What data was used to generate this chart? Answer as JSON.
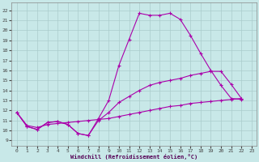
{
  "xlabel": "Windchill (Refroidissement éolien,°C)",
  "background_color": "#c8e8e8",
  "grid_color": "#aacccc",
  "line_color": "#aa00aa",
  "xlim": [
    -0.5,
    23.5
  ],
  "ylim": [
    8.5,
    22.8
  ],
  "xticks": [
    0,
    1,
    2,
    3,
    4,
    5,
    6,
    7,
    8,
    9,
    10,
    11,
    12,
    13,
    14,
    15,
    16,
    17,
    18,
    19,
    20,
    21,
    22,
    23
  ],
  "yticks": [
    9,
    10,
    11,
    12,
    13,
    14,
    15,
    16,
    17,
    18,
    19,
    20,
    21,
    22
  ],
  "line1_x": [
    0,
    1,
    2,
    3,
    4,
    5,
    6,
    7,
    8,
    9,
    10,
    11,
    12,
    13,
    14,
    15,
    16,
    17,
    18,
    19,
    20,
    21,
    22
  ],
  "line1_y": [
    11.8,
    10.4,
    10.1,
    10.8,
    10.9,
    10.6,
    9.7,
    9.5,
    11.2,
    13.0,
    16.5,
    19.1,
    21.7,
    21.5,
    21.5,
    21.7,
    21.1,
    19.5,
    17.7,
    16.0,
    14.5,
    13.2,
    13.1
  ],
  "line2_x": [
    0,
    1,
    2,
    3,
    4,
    5,
    6,
    7,
    8,
    9,
    10,
    11,
    12,
    13,
    14,
    15,
    16,
    17,
    18,
    19,
    20,
    21,
    22
  ],
  "line2_y": [
    11.8,
    10.4,
    10.1,
    10.8,
    10.9,
    10.6,
    9.7,
    9.5,
    11.0,
    11.8,
    12.8,
    13.4,
    14.0,
    14.5,
    14.8,
    15.0,
    15.2,
    15.5,
    15.7,
    15.9,
    15.9,
    14.6,
    13.2
  ],
  "line3_x": [
    0,
    1,
    2,
    3,
    4,
    5,
    6,
    7,
    8,
    9,
    10,
    11,
    12,
    13,
    14,
    15,
    16,
    17,
    18,
    19,
    20,
    21,
    22
  ],
  "line3_y": [
    11.8,
    10.5,
    10.3,
    10.6,
    10.7,
    10.8,
    10.9,
    11.0,
    11.1,
    11.2,
    11.4,
    11.6,
    11.8,
    12.0,
    12.2,
    12.4,
    12.5,
    12.7,
    12.8,
    12.9,
    13.0,
    13.1,
    13.2
  ]
}
